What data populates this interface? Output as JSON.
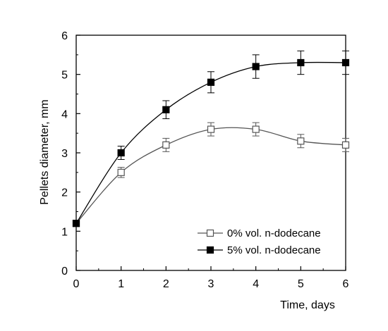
{
  "chart_data": {
    "type": "line",
    "title": "",
    "xlabel": "Time, days",
    "ylabel": "Pellets diameter, mm",
    "xlim": [
      0,
      6
    ],
    "ylim": [
      0,
      6
    ],
    "x_ticks": [
      "0",
      "1",
      "2",
      "3",
      "4",
      "5",
      "6"
    ],
    "y_ticks": [
      "0",
      "1",
      "2",
      "3",
      "4",
      "5",
      "6"
    ],
    "grid": false,
    "legend_position": "bottom-right",
    "series": [
      {
        "name": "0% vol. n-dodecane",
        "marker": "open-square",
        "color": "#555555",
        "x": [
          0,
          1,
          2,
          3,
          4,
          5,
          6
        ],
        "values": [
          1.2,
          2.5,
          3.2,
          3.6,
          3.6,
          3.3,
          3.2
        ],
        "errors": [
          0.05,
          0.13,
          0.17,
          0.17,
          0.17,
          0.17,
          0.17
        ]
      },
      {
        "name": "5% vol. n-dodecane",
        "marker": "filled-square",
        "color": "#000000",
        "x": [
          0,
          1,
          2,
          3,
          4,
          5,
          6
        ],
        "values": [
          1.2,
          3.0,
          4.1,
          4.8,
          5.2,
          5.3,
          5.3
        ],
        "errors": [
          0.05,
          0.17,
          0.23,
          0.27,
          0.3,
          0.3,
          0.3
        ]
      }
    ]
  }
}
